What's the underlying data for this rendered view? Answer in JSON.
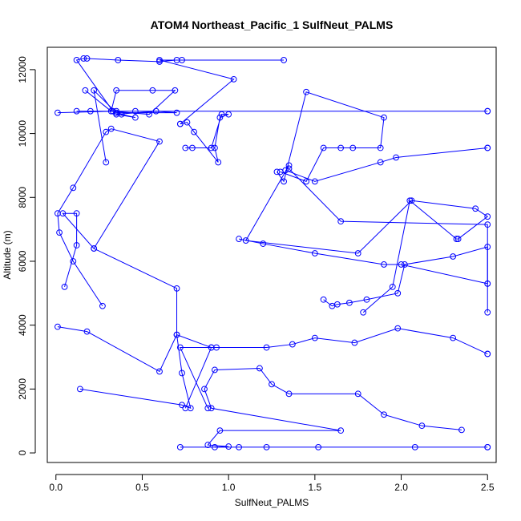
{
  "chart_data": {
    "type": "line",
    "title": "ATOM4 Northeast_Pacific_1 SulfNeut_PALMS",
    "xlabel": "SulfNeut_PALMS",
    "ylabel": "Altitude (m)",
    "xlim": [
      -0.05,
      2.55
    ],
    "ylim": [
      -300,
      12700
    ],
    "x_ticks": [
      0.0,
      0.5,
      1.0,
      1.5,
      2.0,
      2.5
    ],
    "x_tick_labels": [
      "0.0",
      "0.5",
      "1.0",
      "1.5",
      "2.0",
      "2.5"
    ],
    "y_ticks": [
      0,
      2000,
      4000,
      6000,
      8000,
      10000,
      12000
    ],
    "y_tick_labels": [
      "0",
      "2000",
      "4000",
      "6000",
      "8000",
      "10000",
      "12000"
    ],
    "grid": false,
    "color": "#0000ff",
    "series": [
      {
        "x": [
          0.72,
          1.06,
          1.22,
          1.52,
          2.08,
          2.5,
          2.5
        ],
        "y": [
          180,
          180,
          180,
          180,
          180,
          180,
          180
        ]
      },
      {
        "x": [
          0.92,
          1.0,
          0.88,
          0.95,
          1.65,
          0.9,
          0.86,
          0.92,
          1.18,
          1.25,
          1.35,
          1.75,
          1.9,
          2.12,
          2.35
        ],
        "y": [
          180,
          200,
          250,
          700,
          700,
          1400,
          2000,
          2600,
          2650,
          2150,
          1850,
          1850,
          1200,
          850,
          720
        ]
      },
      {
        "x": [
          0.14,
          0.73,
          0.78,
          0.73,
          0.7,
          0.6,
          0.18,
          0.01
        ],
        "y": [
          2000,
          1500,
          1400,
          2500,
          3700,
          2550,
          3800,
          3950
        ]
      },
      {
        "x": [
          0.88,
          0.72,
          0.9,
          0.93,
          1.22,
          1.37,
          1.5,
          1.73,
          1.98,
          2.3,
          2.5,
          2.5
        ],
        "y": [
          1400,
          3300,
          3300,
          3300,
          3300,
          3400,
          3600,
          3450,
          3900,
          3600,
          3100,
          3100
        ]
      },
      {
        "x": [
          0.05,
          0.12,
          0.12,
          0.04,
          0.22,
          0.7,
          0.7,
          0.9,
          0.75
        ],
        "y": [
          5200,
          6500,
          7500,
          7500,
          6400,
          5150,
          3700,
          3300,
          1400
        ]
      },
      {
        "x": [
          0.27,
          0.1,
          0.02,
          0.01,
          0.1,
          0.29,
          0.32,
          0.6,
          0.22
        ],
        "y": [
          4600,
          6000,
          6900,
          7500,
          8300,
          10050,
          10150,
          9750,
          6400
        ]
      },
      {
        "x": [
          1.55,
          1.6,
          1.63,
          1.7,
          1.8,
          1.98,
          2.02,
          2.3,
          2.5,
          2.5,
          2.5
        ],
        "y": [
          4800,
          4600,
          4650,
          4700,
          4800,
          5000,
          5900,
          6150,
          6450,
          5300,
          4400
        ]
      },
      {
        "x": [
          1.78,
          1.95,
          2.05,
          2.32,
          2.33,
          2.5,
          2.43,
          2.06,
          1.75,
          1.1,
          1.35
        ],
        "y": [
          4400,
          5200,
          7900,
          6700,
          6700,
          7400,
          7650,
          7900,
          6250,
          6650,
          9000
        ]
      },
      {
        "x": [
          1.06,
          1.2,
          1.5,
          1.9,
          2.0,
          2.5,
          2.5,
          1.65,
          1.35
        ],
        "y": [
          6700,
          6550,
          6250,
          5900,
          5900,
          5300,
          7150,
          7250,
          8900
        ]
      },
      {
        "x": [
          1.33,
          1.5,
          1.88,
          1.97,
          2.5,
          2.5
        ],
        "y": [
          8850,
          8500,
          9100,
          9250,
          9550,
          9550
        ]
      },
      {
        "x": [
          1.3,
          1.45,
          1.55,
          1.65,
          1.72,
          1.88,
          1.9,
          1.45,
          1.32,
          1.28
        ],
        "y": [
          8800,
          8500,
          9550,
          9550,
          9550,
          9550,
          10500,
          11300,
          8500,
          8800
        ]
      },
      {
        "x": [
          0.75,
          0.79,
          0.9,
          0.96,
          1.0,
          0.95,
          0.92,
          0.94,
          0.8,
          0.76,
          0.72
        ],
        "y": [
          9550,
          9550,
          9550,
          10600,
          10600,
          10500,
          9550,
          9100,
          10050,
          10350,
          10300
        ]
      },
      {
        "x": [
          0.01,
          0.35,
          0.38,
          0.46,
          0.35,
          0.58,
          0.7,
          0.35,
          0.22,
          0.29
        ],
        "y": [
          10650,
          10700,
          10600,
          10500,
          10600,
          10700,
          10650,
          10650,
          11350,
          9100
        ]
      },
      {
        "x": [
          0.12,
          0.46,
          2.5,
          2.5,
          0.2
        ],
        "y": [
          10700,
          10700,
          10700,
          10700,
          10700
        ]
      },
      {
        "x": [
          0.17,
          0.32,
          0.35,
          0.56,
          0.69,
          0.54,
          0.33,
          0.12,
          0.16,
          0.18,
          0.36,
          0.6,
          0.7,
          0.73,
          1.32,
          0.6,
          1.03,
          0.72
        ],
        "y": [
          11350,
          10700,
          11350,
          11350,
          11350,
          10600,
          10700,
          12300,
          12350,
          12350,
          12300,
          12250,
          12300,
          12300,
          12300,
          12300,
          11700,
          10300
        ]
      }
    ]
  }
}
